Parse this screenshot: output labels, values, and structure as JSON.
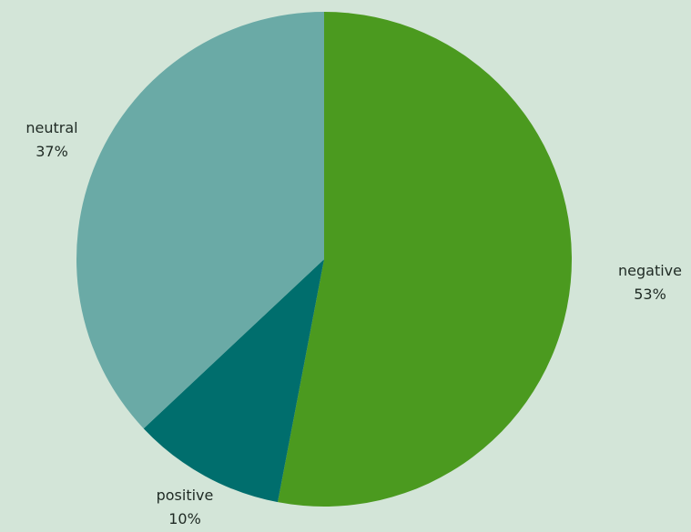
{
  "chart_data": {
    "type": "pie",
    "slices": [
      {
        "label": "negative",
        "value": 53,
        "value_label": "53%",
        "color": "#4b9a1f"
      },
      {
        "label": "positive",
        "value": 10,
        "value_label": "10%",
        "color": "#006e6d"
      },
      {
        "label": "neutral",
        "value": 37,
        "value_label": "37%",
        "color": "#6aaaa6"
      }
    ],
    "start_angle": "12 o'clock",
    "direction": "clockwise",
    "legend": "none"
  },
  "colors": {
    "background": "#d3e5d8",
    "label_text": "#1f2a24"
  }
}
